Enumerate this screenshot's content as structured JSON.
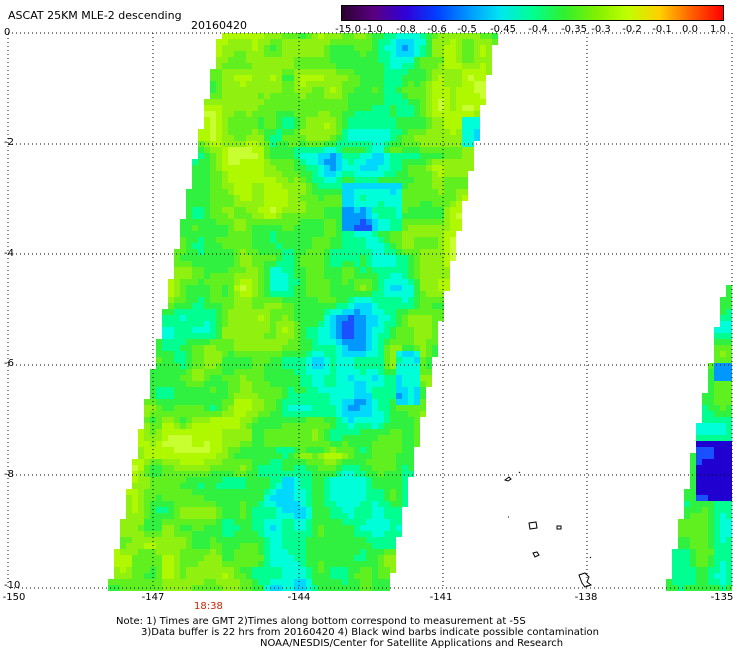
{
  "header": {
    "title": "ASCAT 25KM MLE-2 descending",
    "date": "20160420"
  },
  "colorbar": {
    "labels": [
      "-15.0",
      "-1.0",
      "-0.8",
      "-0.6",
      "-0.5",
      "-0.45",
      "-0.4",
      "-0.35",
      "-0.3",
      "-0.2",
      "-0.1",
      "0.0",
      "1.0"
    ],
    "colors": [
      "#2a0030",
      "#5a0080",
      "#3000d8",
      "#0040ff",
      "#0098ff",
      "#00e8f0",
      "#00ff90",
      "#30f030",
      "#80f000",
      "#c0ff00",
      "#ffd000",
      "#ff6000",
      "#ff0000"
    ]
  },
  "axes": {
    "lat_labels": [
      "0",
      "-2",
      "-4",
      "-6",
      "-8",
      "-10"
    ],
    "lon_labels": [
      "-150",
      "-147",
      "-144",
      "-141",
      "-138",
      "-135"
    ]
  },
  "time_label": "18:38",
  "notes": {
    "line1": "Note: 1) Times are GMT 2)Times along bottom correspond to measurement at -5S",
    "line2": "3)Data buffer is 22 hrs from 20160420 4) Black wind barbs indicate possible contamination",
    "line3": "NOAA/NESDIS/Center for Satellite Applications and Research"
  }
}
